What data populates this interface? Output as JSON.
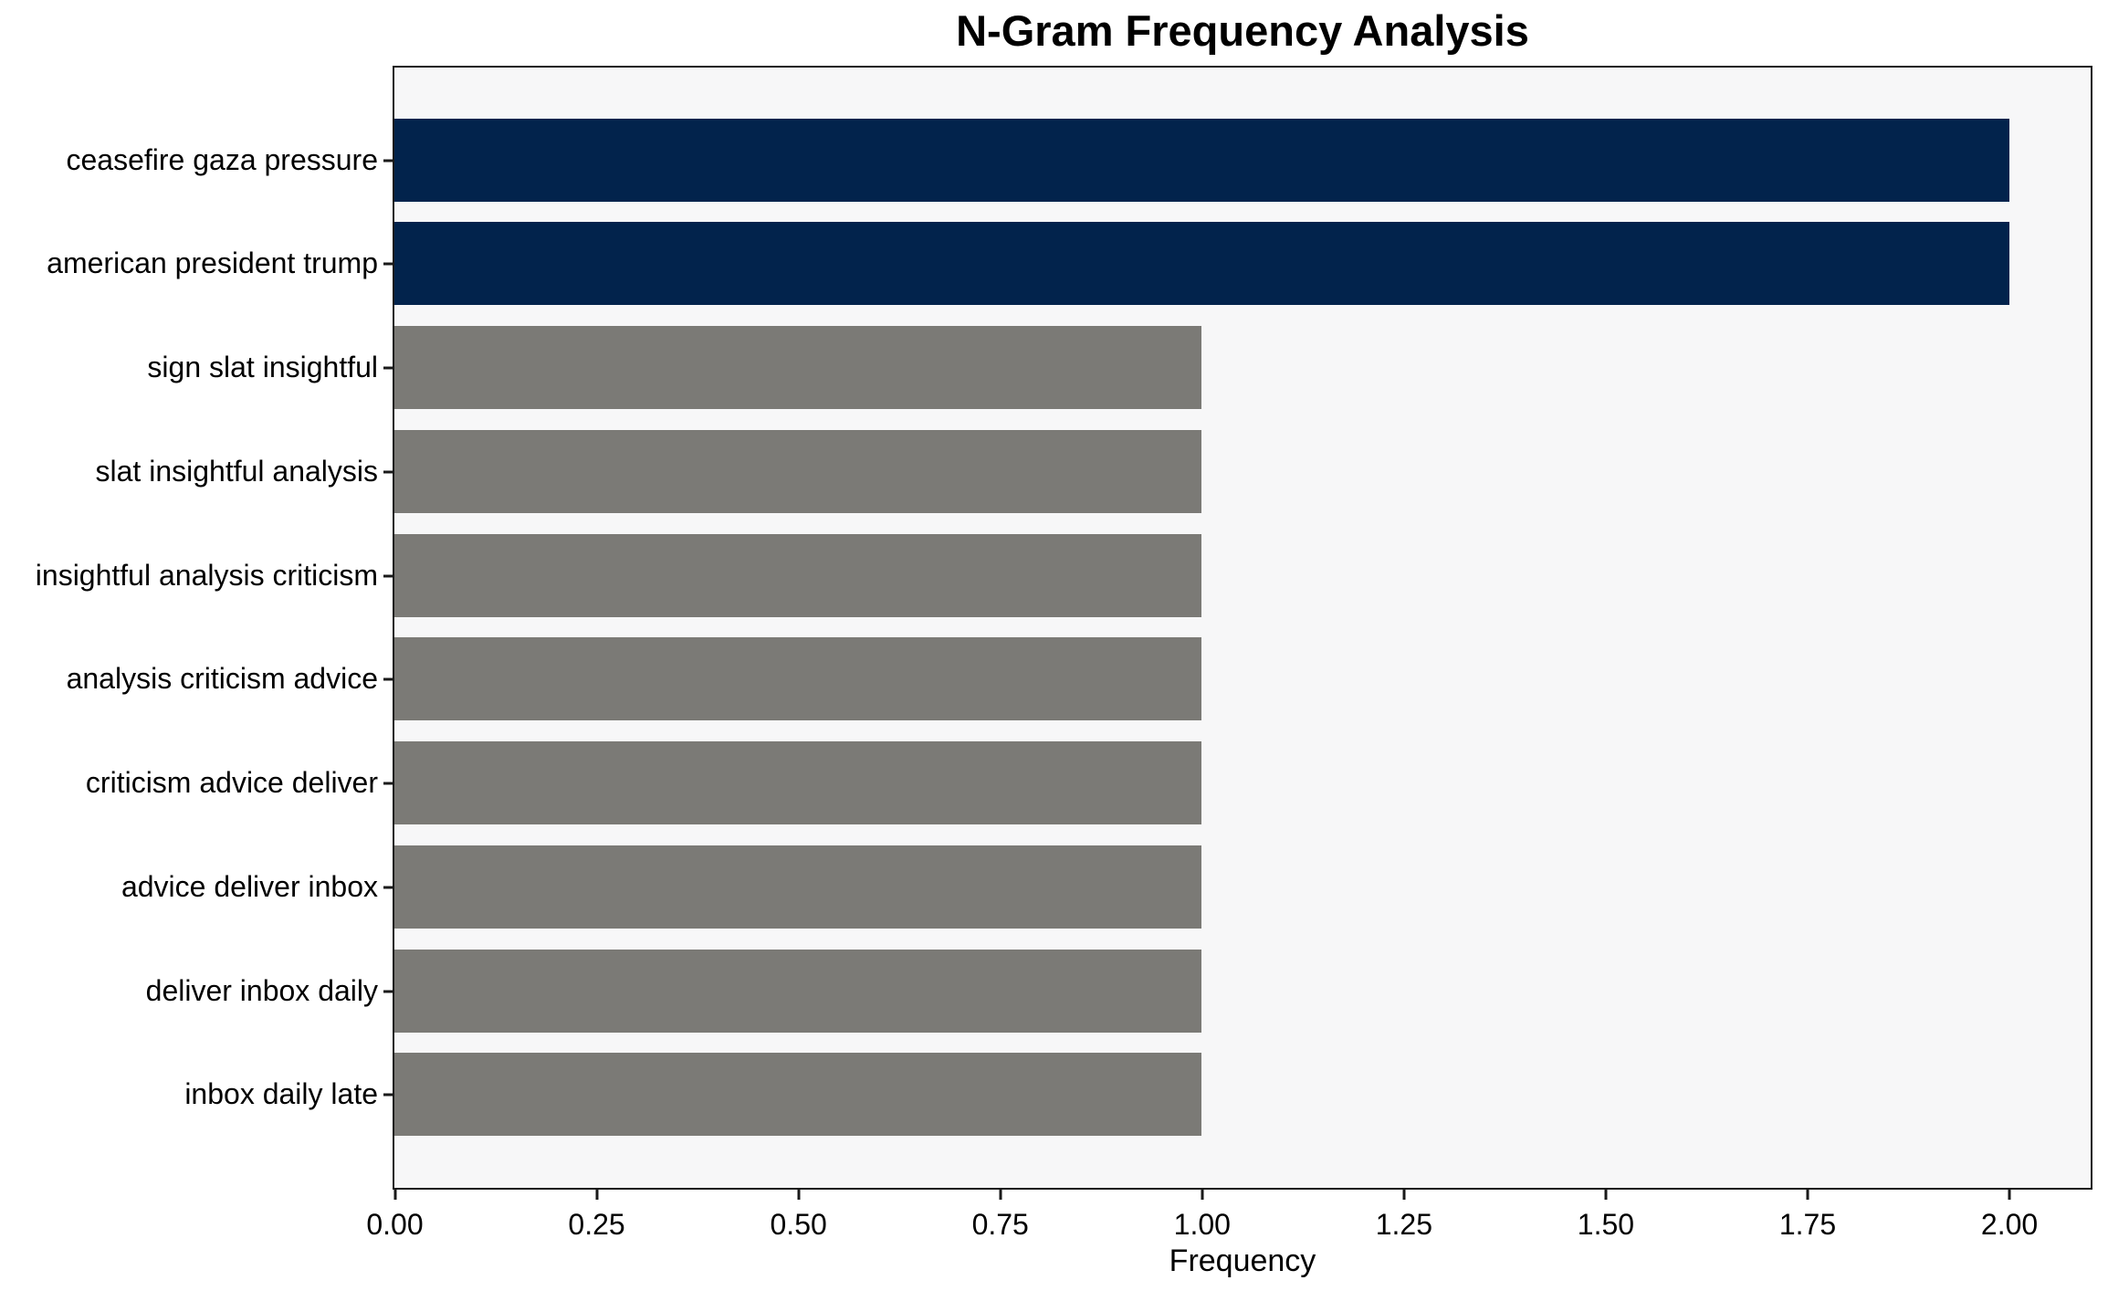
{
  "chart_data": {
    "type": "bar",
    "orientation": "horizontal",
    "title": "N-Gram Frequency Analysis",
    "xlabel": "Frequency",
    "ylabel": "",
    "categories": [
      "ceasefire gaza pressure",
      "american president trump",
      "sign slat insightful",
      "slat insightful analysis",
      "insightful analysis criticism",
      "analysis criticism advice",
      "criticism advice deliver",
      "advice deliver inbox",
      "deliver inbox daily",
      "inbox daily late"
    ],
    "values": [
      2,
      2,
      1,
      1,
      1,
      1,
      1,
      1,
      1,
      1
    ],
    "bar_colors": [
      "#02234C",
      "#02234C",
      "#7B7A76",
      "#7B7A76",
      "#7B7A76",
      "#7B7A76",
      "#7B7A76",
      "#7B7A76",
      "#7B7A76",
      "#7B7A76"
    ],
    "xlim": [
      0,
      2.1
    ],
    "xticks": [
      {
        "value": 0.0,
        "label": "0.00"
      },
      {
        "value": 0.25,
        "label": "0.25"
      },
      {
        "value": 0.5,
        "label": "0.50"
      },
      {
        "value": 0.75,
        "label": "0.75"
      },
      {
        "value": 1.0,
        "label": "1.00"
      },
      {
        "value": 1.25,
        "label": "1.25"
      },
      {
        "value": 1.5,
        "label": "1.50"
      },
      {
        "value": 1.75,
        "label": "1.75"
      },
      {
        "value": 2.0,
        "label": "2.00"
      }
    ],
    "grid": false,
    "legend": false,
    "colors": {
      "highlight_bar": "#02234C",
      "default_bar": "#7B7A76",
      "plot_background": "#F7F7F8",
      "figure_background": "#FFFFFF",
      "axis": "#1A1A1A",
      "text": "#000000"
    }
  }
}
